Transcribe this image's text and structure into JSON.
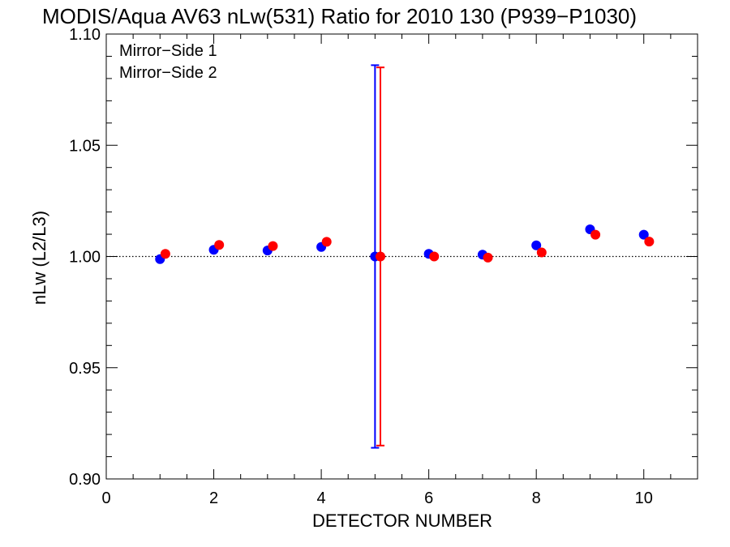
{
  "chart_data": {
    "type": "scatter",
    "title": "MODIS/Aqua AV63 nLw(531) Ratio for 2010 130 (P939−P1030)",
    "xlabel": "DETECTOR NUMBER",
    "ylabel": "nLw (L2/L3)",
    "xlim": [
      0,
      11
    ],
    "ylim": [
      0.9,
      1.1
    ],
    "xticks": [
      0,
      2,
      4,
      6,
      8,
      10
    ],
    "xtick_labels": [
      "0",
      "2",
      "4",
      "6",
      "8",
      "10"
    ],
    "yticks": [
      0.9,
      0.95,
      1.0,
      1.05,
      1.1
    ],
    "ytick_labels": [
      "0.90",
      "0.95",
      "1.00",
      "1.05",
      "1.10"
    ],
    "reference_line": 1.0,
    "grid": false,
    "legend_position": "top-left",
    "series": [
      {
        "name": "Mirror−Side 1",
        "color": "#0000ff",
        "x": [
          1,
          2,
          3,
          4,
          5,
          6,
          7,
          8,
          9,
          10
        ],
        "y": [
          0.9988,
          1.003,
          1.0027,
          1.0043,
          1.0,
          1.0012,
          1.0008,
          1.005,
          1.0122,
          1.0098
        ],
        "error_bar": {
          "x": 5,
          "low": 0.914,
          "high": 1.086
        }
      },
      {
        "name": "Mirror−Side 2",
        "color": "#ff0000",
        "x": [
          1.1,
          2.1,
          3.1,
          4.1,
          5.1,
          6.1,
          7.1,
          8.1,
          9.1,
          10.1
        ],
        "y": [
          1.0012,
          1.0052,
          1.0047,
          1.0066,
          1.0,
          1.0,
          0.9995,
          1.0018,
          1.0098,
          1.0067
        ],
        "error_bar": {
          "x": 5.1,
          "low": 0.915,
          "high": 1.085
        }
      }
    ]
  }
}
